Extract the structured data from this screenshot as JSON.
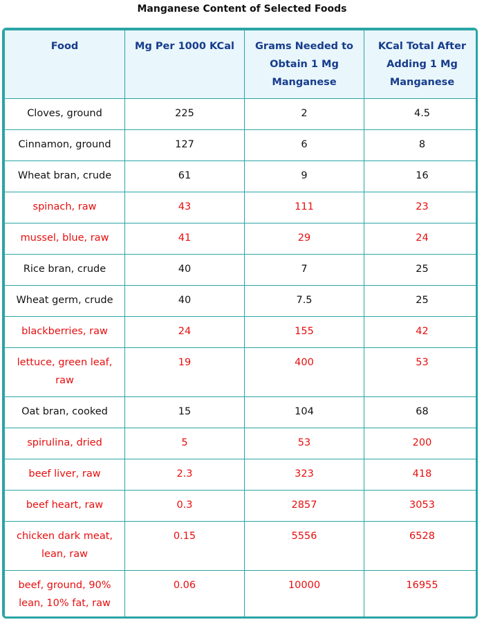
{
  "title": "Manganese Content of Selected Foods",
  "headers": [
    "Food",
    "Mg Per 1000 KCal",
    "Grams Needed to Obtain 1 Mg Manganese",
    "KCal Total After Adding 1 Mg Manganese"
  ],
  "colors": {
    "border": "#2aa4a4",
    "header_bg": "#e9f6fb",
    "header_text": "#173c8c",
    "highlight_text": "#e60e0e",
    "normal_text": "#111111"
  },
  "rows": [
    {
      "food": "Cloves, ground",
      "mg": "225",
      "grams": "2",
      "kcal": "4.5",
      "highlight": false
    },
    {
      "food": "Cinnamon, ground",
      "mg": "127",
      "grams": "6",
      "kcal": "8",
      "highlight": false
    },
    {
      "food": "Wheat bran, crude",
      "mg": "61",
      "grams": "9",
      "kcal": "16",
      "highlight": false
    },
    {
      "food": "spinach, raw",
      "mg": "43",
      "grams": "111",
      "kcal": "23",
      "highlight": true
    },
    {
      "food": "mussel, blue, raw",
      "mg": "41",
      "grams": "29",
      "kcal": "24",
      "highlight": true
    },
    {
      "food": "Rice bran, crude",
      "mg": "40",
      "grams": "7",
      "kcal": "25",
      "highlight": false
    },
    {
      "food": "Wheat germ, crude",
      "mg": "40",
      "grams": "7.5",
      "kcal": "25",
      "highlight": false
    },
    {
      "food": "blackberries, raw",
      "mg": "24",
      "grams": "155",
      "kcal": "42",
      "highlight": true
    },
    {
      "food": "lettuce, green leaf, raw",
      "mg": "19",
      "grams": "400",
      "kcal": "53",
      "highlight": true
    },
    {
      "food": "Oat bran, cooked",
      "mg": "15",
      "grams": "104",
      "kcal": "68",
      "highlight": false
    },
    {
      "food": "spirulina, dried",
      "mg": "5",
      "grams": "53",
      "kcal": "200",
      "highlight": true
    },
    {
      "food": "beef liver, raw",
      "mg": "2.3",
      "grams": "323",
      "kcal": "418",
      "highlight": true
    },
    {
      "food": "beef heart, raw",
      "mg": "0.3",
      "grams": "2857",
      "kcal": "3053",
      "highlight": true
    },
    {
      "food": "chicken dark meat, lean, raw",
      "mg": "0.15",
      "grams": "5556",
      "kcal": "6528",
      "highlight": true
    },
    {
      "food": "beef, ground, 90% lean, 10% fat, raw",
      "mg": "0.06",
      "grams": "10000",
      "kcal": "16955",
      "highlight": true
    }
  ]
}
